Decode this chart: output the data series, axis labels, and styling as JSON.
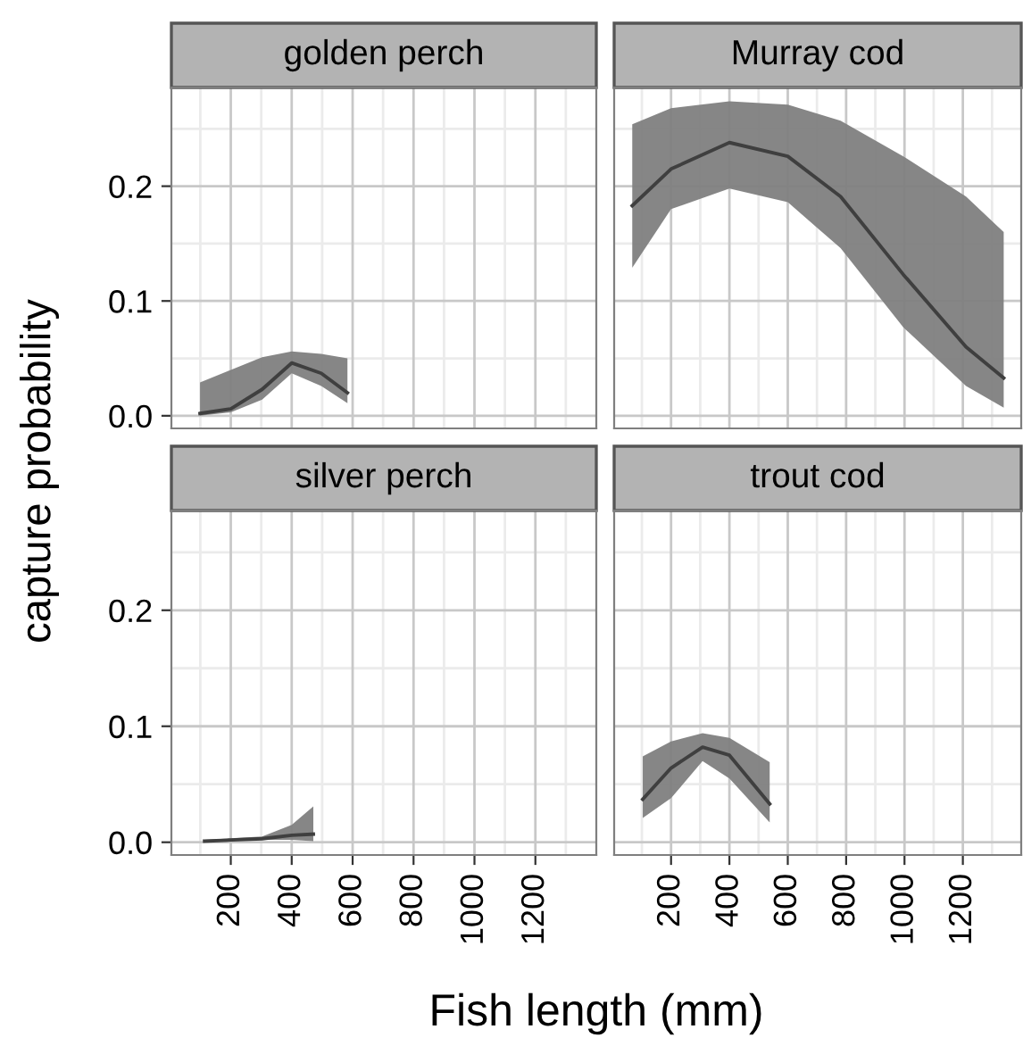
{
  "chart_data": [
    {
      "type": "line",
      "title": "golden perch",
      "ylabel": "capture probability",
      "xlim": [
        5,
        1400
      ],
      "ylim": [
        -0.011,
        0.286
      ],
      "xticks": [
        200,
        400,
        600,
        800,
        1000,
        1200
      ],
      "yticks": [
        {
          "value": 0.0,
          "label": "0.0"
        },
        0.1,
        0.2
      ],
      "grid": true,
      "tick_labels": "y",
      "series": [
        {
          "color": "#3f3f3f",
          "x": [
            99,
            200,
            303,
            400,
            497,
            583
          ],
          "values": [
            0.002,
            0.006,
            0.023,
            0.046,
            0.037,
            0.02
          ],
          "lower": [
            0.0,
            0.003,
            0.014,
            0.037,
            0.026,
            0.011
          ],
          "upper": [
            0.029,
            0.04,
            0.051,
            0.056,
            0.054,
            0.05
          ]
        }
      ]
    },
    {
      "type": "line",
      "title": "Murray cod",
      "xlim": [
        5,
        1400
      ],
      "ylim": [
        -0.011,
        0.286
      ],
      "xticks": [
        200,
        400,
        600,
        800,
        1000,
        1200
      ],
      "yticks": [
        0,
        0.1,
        0.2
      ],
      "grid": true,
      "tick_labels": false,
      "series": [
        {
          "color": "#3f3f3f",
          "x": [
            67,
            200,
            400,
            600,
            781,
            996,
            1211,
            1340
          ],
          "values": [
            0.183,
            0.215,
            0.238,
            0.226,
            0.191,
            0.123,
            0.06,
            0.033
          ],
          "lower": [
            0.129,
            0.18,
            0.198,
            0.186,
            0.146,
            0.077,
            0.026,
            0.007
          ],
          "upper": [
            0.254,
            0.268,
            0.274,
            0.271,
            0.257,
            0.226,
            0.191,
            0.16
          ]
        }
      ]
    },
    {
      "type": "line",
      "title": "silver perch",
      "xlim": [
        5,
        1400
      ],
      "ylim": [
        -0.011,
        0.286
      ],
      "xticks": [
        200,
        400,
        600,
        800,
        1000,
        1200
      ],
      "yticks": [
        {
          "value": 0.0,
          "label": "0.0"
        },
        0.1,
        0.2
      ],
      "grid": true,
      "series": [
        {
          "color": "#3f3f3f",
          "x": [
            114,
            303,
            400,
            471
          ],
          "values": [
            0.001,
            0.003,
            0.006,
            0.007
          ],
          "lower": [
            0.001,
            0.002,
            0.002,
            0.001
          ],
          "upper": [
            0.002,
            0.005,
            0.015,
            0.031
          ]
        }
      ]
    },
    {
      "type": "line",
      "title": "trout cod",
      "xlabel": "Fish length (mm)",
      "xlim": [
        5,
        1400
      ],
      "ylim": [
        -0.011,
        0.286
      ],
      "xticks": [
        200,
        400,
        600,
        800,
        1000,
        1200
      ],
      "yticks": [
        0,
        0.1,
        0.2
      ],
      "grid": true,
      "tick_labels": "x",
      "series": [
        {
          "color": "#3f3f3f",
          "x": [
            103,
            200,
            308,
            400,
            538
          ],
          "values": [
            0.037,
            0.064,
            0.082,
            0.075,
            0.033
          ],
          "lower": [
            0.021,
            0.038,
            0.07,
            0.055,
            0.017
          ],
          "upper": [
            0.074,
            0.087,
            0.094,
            0.09,
            0.069
          ]
        }
      ]
    }
  ]
}
